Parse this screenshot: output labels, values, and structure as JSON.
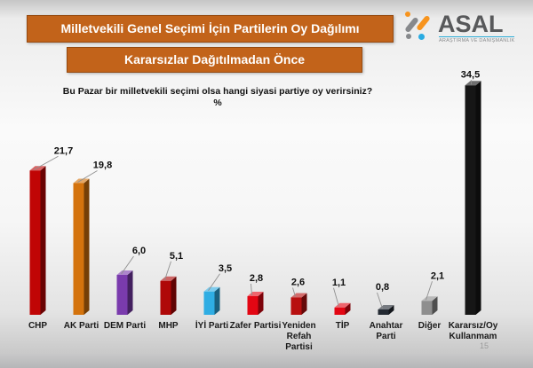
{
  "slide": {
    "title_banner": "Milletvekili Genel Seçimi İçin Partilerin Oy Dağılımı",
    "subtitle_banner": "Kararsızlar Dağıtılmadan Önce",
    "page_number": "15",
    "banner_color": "#C2631A"
  },
  "logo": {
    "name": "ASAL",
    "tagline": "ARAŞTIRMA VE DANIŞMANLIK",
    "colors": {
      "orange": "#F7941E",
      "gray": "#87898C",
      "teal": "#29ABE2",
      "text": "#58595B"
    }
  },
  "chart_data": {
    "type": "bar",
    "style": "3d-column",
    "title": "Milletvekili Genel Seçimi İçin Partilerin Oy Dağılımı",
    "subtitle": "Kararsızlar Dağıtılmadan Önce",
    "question": "Bu Pazar bir milletvekili seçimi olsa hangi siyasi partiye oy verirsiniz?",
    "unit": "%",
    "categories": [
      "CHP",
      "AK Parti",
      "DEM Parti",
      "MHP",
      "İYİ Parti",
      "Zafer Partisi",
      "Yeniden Refah Partisi",
      "TİP",
      "Anahtar Parti",
      "Diğer",
      "Kararsız/Oy Kullanmam"
    ],
    "category_lines": [
      [
        "CHP"
      ],
      [
        "AK Parti"
      ],
      [
        "DEM Parti"
      ],
      [
        "MHP"
      ],
      [
        "İYİ Parti"
      ],
      [
        "Zafer Partisi"
      ],
      [
        "Yeniden",
        "Refah",
        "Partisi"
      ],
      [
        "TİP"
      ],
      [
        "Anahtar",
        "Parti"
      ],
      [
        "Diğer"
      ],
      [
        "Kararsız/Oy",
        "Kullanmam"
      ]
    ],
    "values": [
      21.7,
      19.8,
      6.0,
      5.1,
      3.5,
      2.8,
      2.6,
      1.1,
      0.8,
      2.1,
      34.5
    ],
    "value_labels": [
      "21,7",
      "19,8",
      "6,0",
      "5,1",
      "3,5",
      "2,8",
      "2,6",
      "1,1",
      "0,8",
      "2,1",
      "34,5"
    ],
    "bar_colors": [
      "#C00505",
      "#D4730D",
      "#7A3BAD",
      "#AF0808",
      "#2FADE3",
      "#E30613",
      "#B81010",
      "#E30613",
      "#242A33",
      "#8E8E8E",
      "#161616"
    ],
    "ylim": [
      0,
      36
    ],
    "grid": false,
    "legend": false
  }
}
